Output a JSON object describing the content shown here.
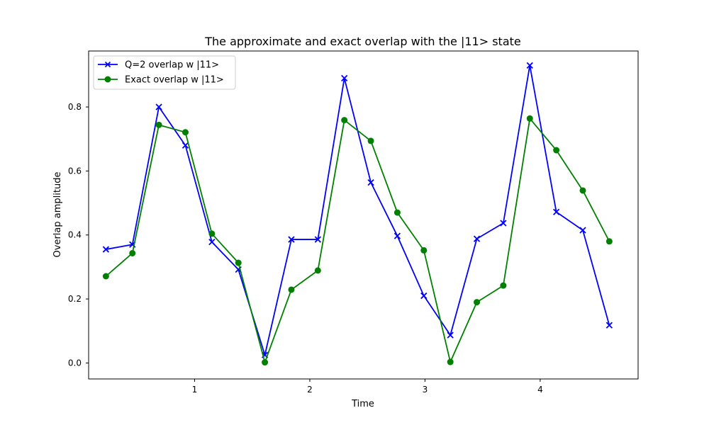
{
  "chart_data": {
    "type": "line",
    "title": "The approximate and exact overlap with the |11> state",
    "xlabel": "Time",
    "ylabel": "Overlap amplitude",
    "xlim": [
      0.08,
      4.85
    ],
    "ylim": [
      -0.05,
      0.975
    ],
    "xticks": [
      1,
      2,
      3,
      4
    ],
    "xtick_labels": [
      "1",
      "2",
      "3",
      "4"
    ],
    "yticks": [
      0.0,
      0.2,
      0.4,
      0.6,
      0.8
    ],
    "ytick_labels": [
      "0.0",
      "0.2",
      "0.4",
      "0.6",
      "0.8"
    ],
    "grid": false,
    "legend_position": "top-left",
    "x": [
      0.23,
      0.46,
      0.69,
      0.92,
      1.15,
      1.38,
      1.61,
      1.84,
      2.07,
      2.3,
      2.53,
      2.76,
      2.99,
      3.22,
      3.45,
      3.68,
      3.91,
      4.14,
      4.37,
      4.6
    ],
    "series": [
      {
        "name": "Q=2 overlap w |11>",
        "color": "#0000ff",
        "marker": "x",
        "values": [
          0.355,
          0.37,
          0.8,
          0.68,
          0.378,
          0.292,
          0.025,
          0.386,
          0.386,
          0.89,
          0.564,
          0.397,
          0.21,
          0.087,
          0.388,
          0.437,
          0.93,
          0.472,
          0.415,
          0.118
        ]
      },
      {
        "name": "Exact overlap w |11>",
        "color": "#008000",
        "marker": "o",
        "values": [
          0.271,
          0.343,
          0.744,
          0.721,
          0.404,
          0.313,
          0.002,
          0.229,
          0.289,
          0.759,
          0.694,
          0.47,
          0.352,
          0.003,
          0.19,
          0.242,
          0.764,
          0.665,
          0.539,
          0.38
        ]
      }
    ]
  }
}
